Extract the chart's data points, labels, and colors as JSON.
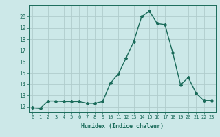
{
  "x": [
    0,
    1,
    2,
    3,
    4,
    5,
    6,
    7,
    8,
    9,
    10,
    11,
    12,
    13,
    14,
    15,
    16,
    17,
    18,
    19,
    20,
    21,
    22,
    23
  ],
  "y": [
    11.9,
    11.85,
    12.5,
    12.5,
    12.45,
    12.45,
    12.45,
    12.3,
    12.3,
    12.45,
    14.1,
    14.9,
    16.3,
    17.8,
    20.0,
    20.5,
    19.4,
    19.3,
    16.8,
    13.95,
    14.6,
    13.2,
    12.55,
    12.55
  ],
  "xlabel": "Humidex (Indice chaleur)",
  "ylim": [
    11.5,
    21.0
  ],
  "xlim": [
    -0.5,
    23.5
  ],
  "yticks": [
    12,
    13,
    14,
    15,
    16,
    17,
    18,
    19,
    20
  ],
  "xticks": [
    0,
    1,
    2,
    3,
    4,
    5,
    6,
    7,
    8,
    9,
    10,
    11,
    12,
    13,
    14,
    15,
    16,
    17,
    18,
    19,
    20,
    21,
    22,
    23
  ],
  "line_color": "#1a6b5a",
  "bg_color": "#cce8e8",
  "grid_color": "#b0cccc",
  "tick_color": "#1a6b5a",
  "label_color": "#1a6b5a"
}
